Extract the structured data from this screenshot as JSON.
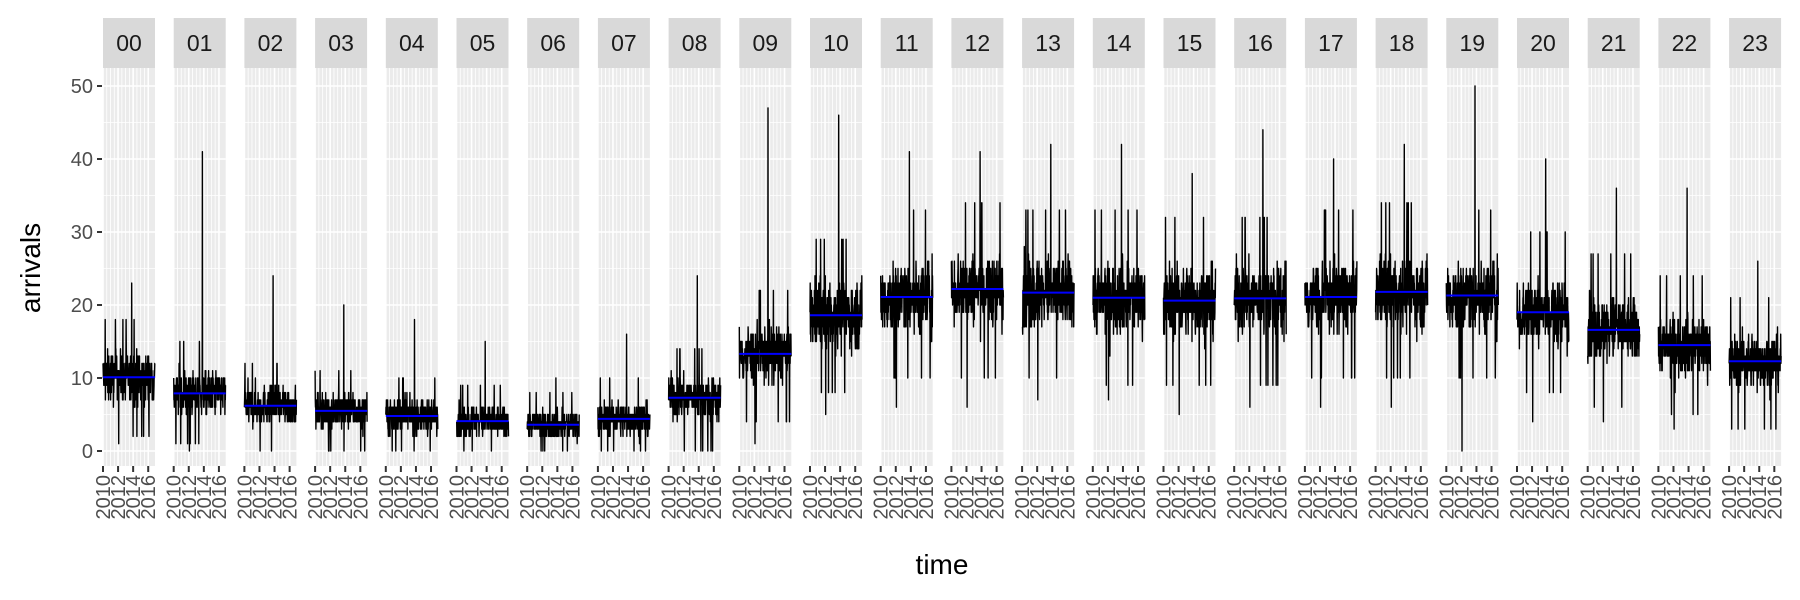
{
  "chart_data": {
    "type": "line",
    "xlabel": "time",
    "ylabel": "arrivals",
    "ylim": [
      0,
      52
    ],
    "yticks": [
      0,
      10,
      20,
      30,
      40,
      50
    ],
    "xlim": [
      2010,
      2016.9
    ],
    "xticks": [
      2010,
      2012,
      2014,
      2016
    ],
    "xtick_labels": [
      "2010",
      "2012",
      "2014",
      "2016"
    ],
    "facet_by": "hour",
    "panels": [
      {
        "hour": "00",
        "mean": 10.1,
        "range": [
          1,
          23
        ]
      },
      {
        "hour": "01",
        "mean": 7.9,
        "range": [
          0,
          41
        ]
      },
      {
        "hour": "02",
        "mean": 6.2,
        "range": [
          0,
          24
        ]
      },
      {
        "hour": "03",
        "mean": 5.5,
        "range": [
          0,
          20
        ]
      },
      {
        "hour": "04",
        "mean": 4.8,
        "range": [
          0,
          18
        ]
      },
      {
        "hour": "05",
        "mean": 4.1,
        "range": [
          0,
          15
        ]
      },
      {
        "hour": "06",
        "mean": 3.6,
        "range": [
          0,
          10
        ]
      },
      {
        "hour": "07",
        "mean": 4.4,
        "range": [
          0,
          16
        ]
      },
      {
        "hour": "08",
        "mean": 7.3,
        "range": [
          0,
          24
        ]
      },
      {
        "hour": "09",
        "mean": 13.3,
        "range": [
          1,
          47
        ]
      },
      {
        "hour": "10",
        "mean": 18.6,
        "range": [
          5,
          46
        ]
      },
      {
        "hour": "11",
        "mean": 21.1,
        "range": [
          6,
          41
        ]
      },
      {
        "hour": "12",
        "mean": 22.2,
        "range": [
          6,
          41
        ]
      },
      {
        "hour": "13",
        "mean": 21.7,
        "range": [
          7,
          42
        ]
      },
      {
        "hour": "14",
        "mean": 21.0,
        "range": [
          7,
          42
        ]
      },
      {
        "hour": "15",
        "mean": 20.6,
        "range": [
          5,
          38
        ]
      },
      {
        "hour": "16",
        "mean": 20.9,
        "range": [
          6,
          44
        ]
      },
      {
        "hour": "17",
        "mean": 21.1,
        "range": [
          6,
          40
        ]
      },
      {
        "hour": "18",
        "mean": 21.8,
        "range": [
          6,
          42
        ]
      },
      {
        "hour": "19",
        "mean": 21.3,
        "range": [
          0,
          50
        ]
      },
      {
        "hour": "20",
        "mean": 19.0,
        "range": [
          4,
          40
        ]
      },
      {
        "hour": "21",
        "mean": 16.6,
        "range": [
          4,
          36
        ]
      },
      {
        "hour": "22",
        "mean": 14.5,
        "range": [
          3,
          36
        ]
      },
      {
        "hour": "23",
        "mean": 12.3,
        "range": [
          3,
          26
        ]
      }
    ],
    "colors": {
      "series": "#000000",
      "mean_line": "#0000ff",
      "panel_background": "#ebebeb",
      "grid": "#ffffff",
      "strip_background": "#d9d9d9",
      "page_background": "#ffffff"
    },
    "grid": true,
    "legend": "none"
  }
}
